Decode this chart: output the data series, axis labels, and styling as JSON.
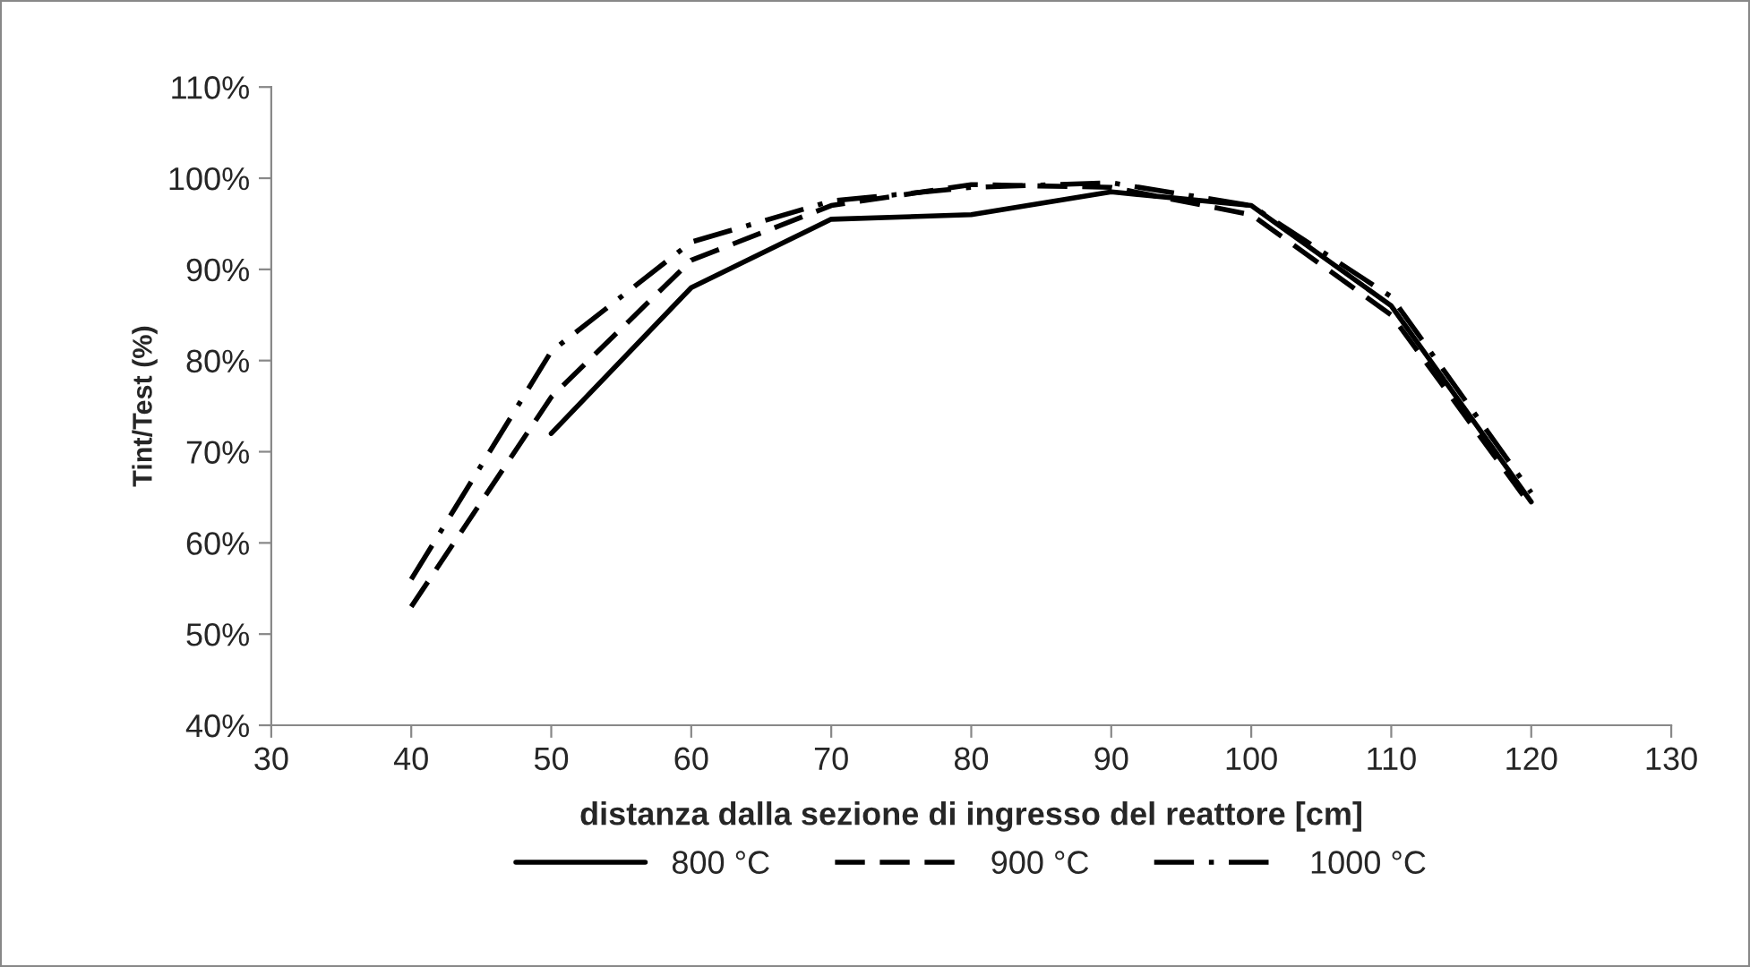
{
  "chart_data": {
    "type": "line",
    "xlabel": "distanza dalla sezione di ingresso del reattore [cm]",
    "ylabel": "Tint/Test (%)",
    "x": [
      40,
      50,
      60,
      70,
      80,
      90,
      100,
      110,
      120
    ],
    "series": [
      {
        "name": "800 °C",
        "color": "#000000",
        "line_style": "solid",
        "values": [
          null,
          72,
          88,
          95.5,
          96,
          98.5,
          97,
          86,
          64.5
        ]
      },
      {
        "name": "900 °C",
        "color": "#000000",
        "line_style": "dashed",
        "values": [
          53,
          76,
          91,
          97,
          99.3,
          99,
          96,
          85,
          64
        ]
      },
      {
        "name": "1000 °C",
        "color": "#000000",
        "line_style": "dashdot",
        "values": [
          56,
          81,
          93,
          97.5,
          99,
          99.5,
          97,
          87,
          65.5
        ]
      }
    ],
    "xlim": [
      30,
      130
    ],
    "xticks": [
      30,
      40,
      50,
      60,
      70,
      80,
      90,
      100,
      110,
      120,
      130
    ],
    "ylim": [
      40,
      110
    ],
    "yticks": [
      {
        "value": 40,
        "label": "40%"
      },
      {
        "value": 50,
        "label": "50%"
      },
      {
        "value": 60,
        "label": "60%"
      },
      {
        "value": 70,
        "label": "70%"
      },
      {
        "value": 80,
        "label": "80%"
      },
      {
        "value": 90,
        "label": "90%"
      },
      {
        "value": 100,
        "label": "100%"
      },
      {
        "value": 110,
        "label": "110%"
      }
    ],
    "grid": false,
    "legend": "bottom",
    "marker": "none"
  }
}
